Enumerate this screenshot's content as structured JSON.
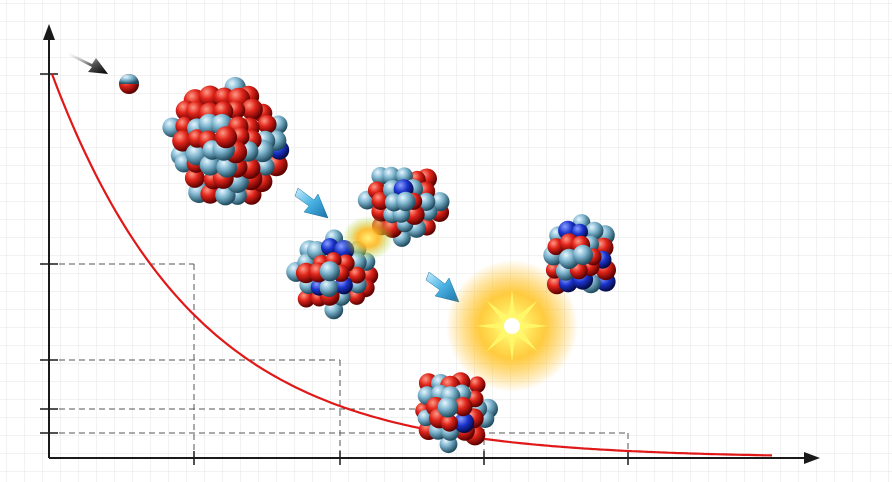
{
  "colors": {
    "background": "#ffffff",
    "grid": "#e6e6e6",
    "axis": "#1a1a1a",
    "curve": "#e01818",
    "guide": "#555555",
    "proton": "#e0241a",
    "neutron": "#7fb6cf",
    "core": "#1a33cc",
    "arrow": "#3aa6d8",
    "flash": "#ffd23a"
  },
  "icons": {
    "incoming": "black-arrow-icon",
    "step": "blue-arrow-icon",
    "energy": "flash-burst-icon"
  }
}
